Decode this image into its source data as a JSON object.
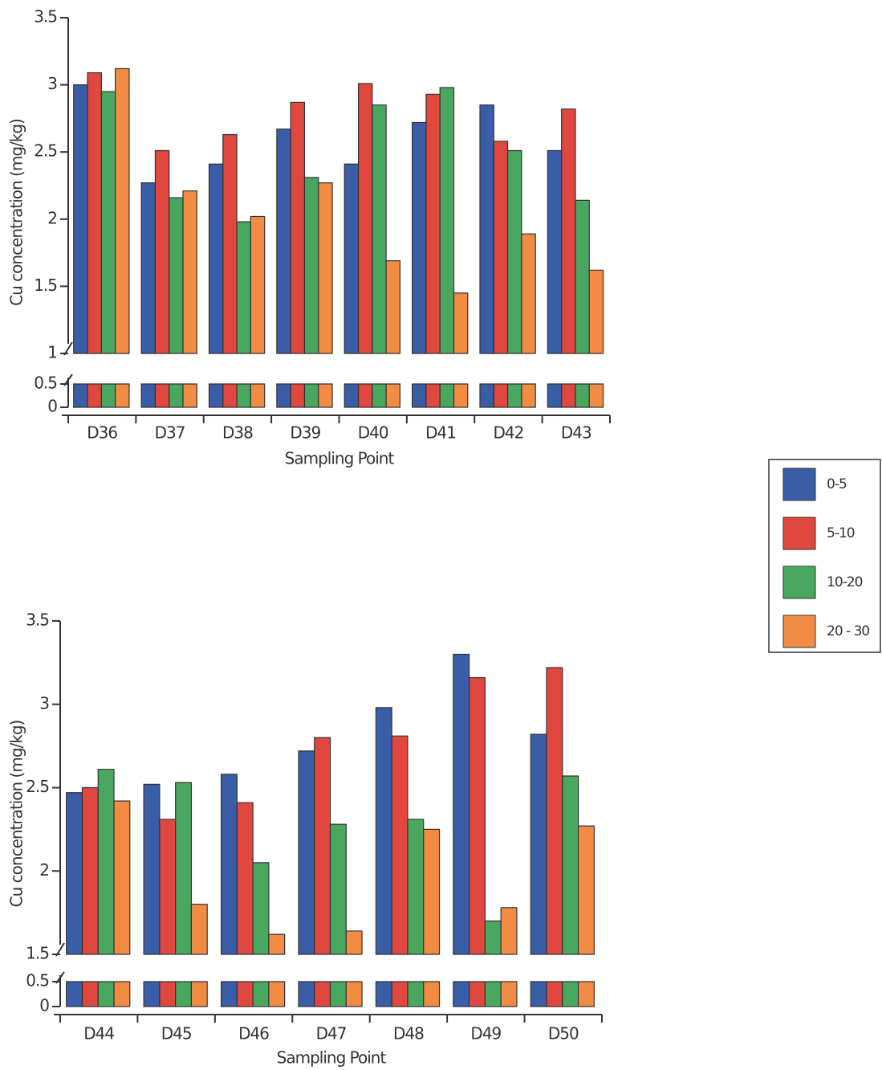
{
  "chart_data": [
    {
      "type": "bar",
      "y_label": "Cu concentration (mg/kg)",
      "x_label": "Sampling Point",
      "categories": [
        "D36",
        "D37",
        "D38",
        "D39",
        "D40",
        "D41",
        "D42",
        "D43"
      ],
      "ylim": [
        0,
        3.5
      ],
      "ybreak": [
        0.5,
        1
      ],
      "yticks": [
        0,
        0.5,
        1,
        1.5,
        2,
        2.5,
        3,
        3.5
      ],
      "legend": "right",
      "series": [
        {
          "name": "0-5",
          "color": "#3a5da8",
          "values": [
            3.0,
            2.27,
            2.41,
            2.67,
            2.41,
            2.72,
            2.85,
            2.51
          ]
        },
        {
          "name": "5-10",
          "color": "#e0473f",
          "values": [
            3.09,
            2.51,
            2.63,
            2.87,
            3.01,
            2.93,
            2.58,
            2.82
          ]
        },
        {
          "name": "10-20",
          "color": "#4aa75f",
          "values": [
            2.95,
            2.16,
            1.98,
            2.31,
            2.85,
            2.98,
            2.51,
            2.14
          ]
        },
        {
          "name": "20 - 30",
          "color": "#f28c45",
          "values": [
            3.12,
            2.21,
            2.02,
            2.27,
            1.69,
            1.45,
            1.89,
            1.62
          ]
        }
      ]
    },
    {
      "type": "bar",
      "y_label": "Cu concentration (mg/kg)",
      "x_label": "Sampling Point",
      "categories": [
        "D44",
        "D45",
        "D46",
        "D47",
        "D48",
        "D49",
        "D50"
      ],
      "ylim": [
        0,
        3.5
      ],
      "ybreak": [
        0.5,
        1.5
      ],
      "yticks": [
        0,
        0.5,
        1.5,
        2,
        2.5,
        3,
        3.5
      ],
      "series": [
        {
          "color": "#3a5da8",
          "values": [
            2.47,
            2.52,
            2.58,
            2.72,
            2.98,
            3.3,
            2.82
          ]
        },
        {
          "color": "#e0473f",
          "values": [
            2.5,
            2.31,
            2.41,
            2.8,
            2.81,
            3.16,
            3.22
          ]
        },
        {
          "color": "#4aa75f",
          "values": [
            2.61,
            2.53,
            2.05,
            2.28,
            2.31,
            1.7,
            2.57
          ]
        },
        {
          "color": "#f28c45",
          "values": [
            2.42,
            1.8,
            1.62,
            1.64,
            2.25,
            1.78,
            2.27
          ]
        }
      ]
    }
  ]
}
